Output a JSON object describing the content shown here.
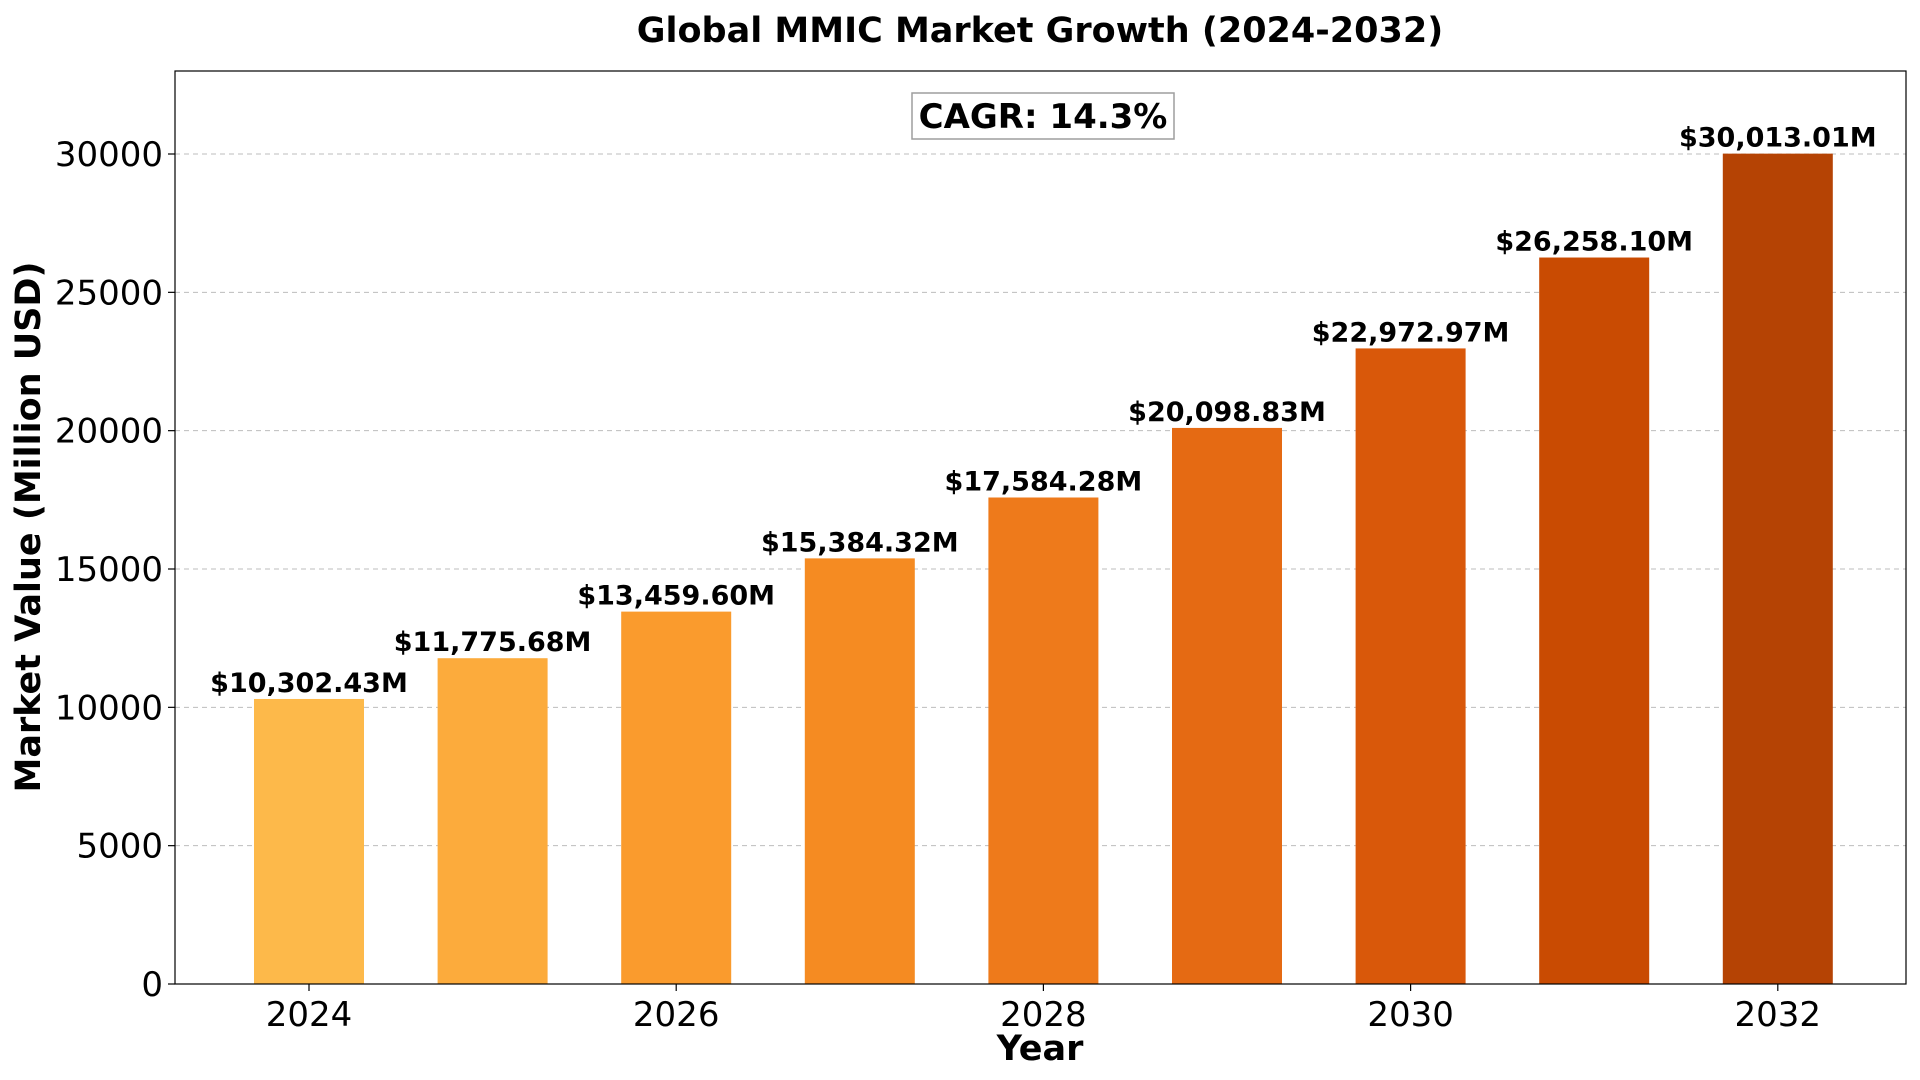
{
  "chart_data": {
    "type": "bar",
    "title": "Global MMIC Market Growth (2024-2032)",
    "xlabel": "Year",
    "ylabel": "Market Value (Million USD)",
    "categories": [
      "2024",
      "2025",
      "2026",
      "2027",
      "2028",
      "2029",
      "2030",
      "2031",
      "2032"
    ],
    "values": [
      10302.43,
      11775.68,
      13459.6,
      15384.32,
      17584.28,
      20098.83,
      22972.97,
      26258.1,
      30013.01
    ],
    "value_labels": [
      "$10,302.43M",
      "$11,775.68M",
      "$13,459.60M",
      "$15,384.32M",
      "$17,584.28M",
      "$20,098.83M",
      "$22,972.97M",
      "$26,258.10M",
      "$30,013.01M"
    ],
    "bar_colors": [
      "#fdb94a",
      "#fcab3c",
      "#fa9b2d",
      "#f58b22",
      "#ee7a1b",
      "#e56a13",
      "#d9580a",
      "#c94b02",
      "#b54304"
    ],
    "x_ticks": [
      "2024",
      "2026",
      "2028",
      "2030",
      "2032"
    ],
    "y_ticks": [
      "0",
      "5000",
      "10000",
      "15000",
      "20000",
      "25000",
      "30000"
    ],
    "ylim": [
      0,
      33000
    ],
    "grid": "horizontal dashed",
    "annotation": "CAGR: 14.3%"
  }
}
